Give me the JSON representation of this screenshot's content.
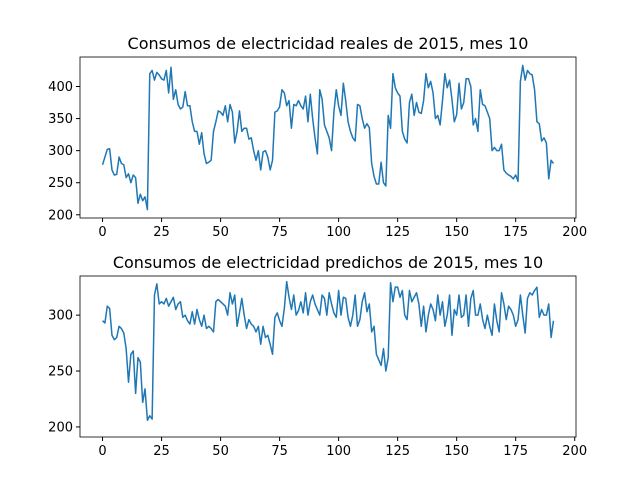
{
  "chart_data": [
    {
      "type": "line",
      "title": "Consumos de electricidad reales de 2015, mes 10",
      "x": [
        0,
        1,
        2,
        3,
        4,
        5,
        6,
        7,
        8,
        9,
        10,
        11,
        12,
        13,
        14,
        15,
        16,
        17,
        18,
        19,
        20,
        21,
        22,
        23,
        24,
        25,
        26,
        27,
        28,
        29,
        30,
        31,
        32,
        33,
        34,
        35,
        36,
        37,
        38,
        39,
        40,
        41,
        42,
        43,
        44,
        45,
        46,
        47,
        48,
        49,
        50,
        51,
        52,
        53,
        54,
        55,
        56,
        57,
        58,
        59,
        60,
        61,
        62,
        63,
        64,
        65,
        66,
        67,
        68,
        69,
        70,
        71,
        72,
        73,
        74,
        75,
        76,
        77,
        78,
        79,
        80,
        81,
        82,
        83,
        84,
        85,
        86,
        87,
        88,
        89,
        90,
        91,
        92,
        93,
        94,
        95,
        96,
        97,
        98,
        99,
        100,
        101,
        102,
        103,
        104,
        105,
        106,
        107,
        108,
        109,
        110,
        111,
        112,
        113,
        114,
        115,
        116,
        117,
        118,
        119,
        120,
        121,
        122,
        123,
        124,
        125,
        126,
        127,
        128,
        129,
        130,
        131,
        132,
        133,
        134,
        135,
        136,
        137,
        138,
        139,
        140,
        141,
        142,
        143,
        144,
        145,
        146,
        147,
        148,
        149,
        150,
        151,
        152,
        153,
        154,
        155,
        156,
        157,
        158,
        159,
        160,
        161,
        162,
        163,
        164,
        165,
        166,
        167,
        168,
        169,
        170,
        171,
        172,
        173,
        174,
        175,
        176,
        177,
        178,
        179,
        180,
        181,
        182,
        183,
        184,
        185,
        186,
        187,
        188,
        189,
        190,
        191
      ],
      "series": [
        {
          "color": "#1f77b4",
          "values": [
            278,
            290,
            302,
            303,
            270,
            262,
            263,
            290,
            280,
            278,
            258,
            264,
            250,
            262,
            258,
            218,
            232,
            222,
            228,
            208,
            420,
            425,
            410,
            422,
            418,
            412,
            410,
            425,
            390,
            430,
            380,
            395,
            372,
            365,
            368,
            392,
            370,
            370,
            345,
            330,
            330,
            310,
            328,
            295,
            280,
            282,
            285,
            330,
            345,
            362,
            360,
            355,
            370,
            345,
            372,
            360,
            312,
            330,
            362,
            330,
            335,
            335,
            318,
            320,
            300,
            285,
            300,
            270,
            298,
            300,
            290,
            270,
            285,
            360,
            362,
            368,
            395,
            390,
            370,
            378,
            335,
            372,
            370,
            378,
            370,
            365,
            385,
            345,
            388,
            350,
            320,
            295,
            395,
            380,
            340,
            330,
            320,
            300,
            360,
            395,
            370,
            355,
            405,
            378,
            345,
            330,
            320,
            315,
            372,
            370,
            350,
            335,
            342,
            336,
            280,
            260,
            248,
            248,
            282,
            250,
            245,
            355,
            335,
            420,
            398,
            390,
            385,
            330,
            318,
            312,
            375,
            388,
            355,
            375,
            360,
            358,
            378,
            420,
            398,
            408,
            390,
            350,
            355,
            340,
            378,
            420,
            398,
            410,
            380,
            345,
            356,
            405,
            365,
            375,
            412,
            412,
            400,
            340,
            350,
            330,
            395,
            372,
            370,
            360,
            350,
            300,
            305,
            300,
            300,
            310,
            270,
            265,
            262,
            260,
            256,
            262,
            252,
            408,
            433,
            410,
            425,
            420,
            418,
            395,
            345,
            342,
            315,
            320,
            312,
            256,
            285,
            280
          ]
        }
      ],
      "xlim": [
        -9.55,
        200.55
      ],
      "xticks": [
        0,
        25,
        50,
        75,
        100,
        125,
        150,
        175,
        200
      ],
      "ylim": [
        195,
        446
      ],
      "yticks": [
        200,
        250,
        300,
        350,
        400
      ]
    },
    {
      "type": "line",
      "title": "Consumos de electricidad predichos de 2015, mes 10",
      "x": [
        0,
        1,
        2,
        3,
        4,
        5,
        6,
        7,
        8,
        9,
        10,
        11,
        12,
        13,
        14,
        15,
        16,
        17,
        18,
        19,
        20,
        21,
        22,
        23,
        24,
        25,
        26,
        27,
        28,
        29,
        30,
        31,
        32,
        33,
        34,
        35,
        36,
        37,
        38,
        39,
        40,
        41,
        42,
        43,
        44,
        45,
        46,
        47,
        48,
        49,
        50,
        51,
        52,
        53,
        54,
        55,
        56,
        57,
        58,
        59,
        60,
        61,
        62,
        63,
        64,
        65,
        66,
        67,
        68,
        69,
        70,
        71,
        72,
        73,
        74,
        75,
        76,
        77,
        78,
        79,
        80,
        81,
        82,
        83,
        84,
        85,
        86,
        87,
        88,
        89,
        90,
        91,
        92,
        93,
        94,
        95,
        96,
        97,
        98,
        99,
        100,
        101,
        102,
        103,
        104,
        105,
        106,
        107,
        108,
        109,
        110,
        111,
        112,
        113,
        114,
        115,
        116,
        117,
        118,
        119,
        120,
        121,
        122,
        123,
        124,
        125,
        126,
        127,
        128,
        129,
        130,
        131,
        132,
        133,
        134,
        135,
        136,
        137,
        138,
        139,
        140,
        141,
        142,
        143,
        144,
        145,
        146,
        147,
        148,
        149,
        150,
        151,
        152,
        153,
        154,
        155,
        156,
        157,
        158,
        159,
        160,
        161,
        162,
        163,
        164,
        165,
        166,
        167,
        168,
        169,
        170,
        171,
        172,
        173,
        174,
        175,
        176,
        177,
        178,
        179,
        180,
        181,
        182,
        183,
        184,
        185,
        186,
        187,
        188,
        189,
        190,
        191
      ],
      "series": [
        {
          "color": "#1f77b4",
          "values": [
            295,
            293,
            308,
            306,
            282,
            278,
            280,
            290,
            288,
            284,
            270,
            240,
            265,
            268,
            230,
            262,
            258,
            222,
            234,
            206,
            210,
            207,
            318,
            328,
            310,
            312,
            310,
            315,
            308,
            312,
            316,
            305,
            310,
            312,
            298,
            300,
            295,
            292,
            303,
            292,
            305,
            296,
            290,
            300,
            288,
            290,
            288,
            285,
            312,
            314,
            312,
            310,
            308,
            300,
            320,
            310,
            318,
            290,
            302,
            315,
            300,
            288,
            296,
            292,
            290,
            285,
            290,
            274,
            290,
            280,
            282,
            274,
            265,
            298,
            302,
            295,
            290,
            306,
            330,
            316,
            305,
            318,
            300,
            304,
            312,
            302,
            320,
            300,
            312,
            318,
            310,
            305,
            300,
            318,
            315,
            300,
            320,
            310,
            302,
            298,
            322,
            300,
            316,
            315,
            298,
            290,
            300,
            318,
            290,
            296,
            312,
            320,
            303,
            310,
            285,
            290,
            265,
            260,
            255,
            270,
            250,
            262,
            329,
            312,
            325,
            325,
            316,
            322,
            300,
            296,
            322,
            312,
            316,
            320,
            310,
            290,
            308,
            285,
            300,
            310,
            305,
            295,
            318,
            300,
            312,
            290,
            300,
            318,
            282,
            305,
            300,
            318,
            298,
            300,
            318,
            290,
            315,
            322,
            300,
            300,
            310,
            296,
            288,
            300,
            290,
            282,
            310,
            295,
            285,
            320,
            310,
            296,
            308,
            305,
            300,
            290,
            296,
            318,
            300,
            284,
            315,
            320,
            318,
            322,
            325,
            298,
            305,
            300,
            300,
            310,
            280,
            295
          ]
        }
      ],
      "xlim": [
        -9.55,
        200.55
      ],
      "xticks": [
        0,
        25,
        50,
        75,
        100,
        125,
        150,
        175,
        200
      ],
      "ylim": [
        191,
        335
      ],
      "yticks": [
        200,
        250,
        300
      ]
    }
  ]
}
